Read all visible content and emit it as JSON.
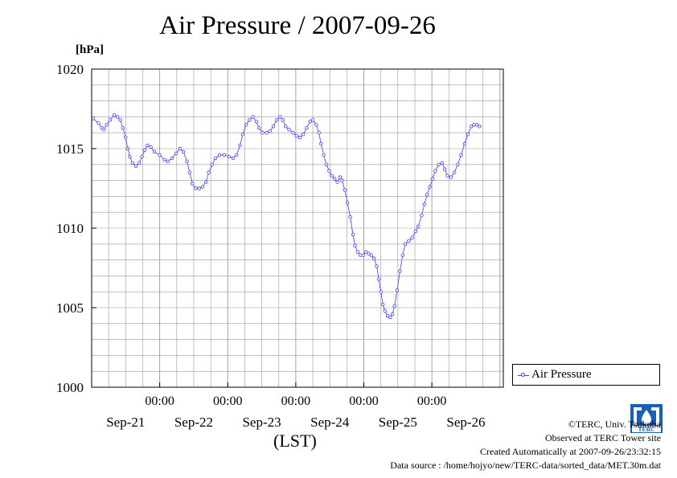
{
  "page": {
    "title": "Air Pressure / 2007-09-26",
    "unit_label": "[hPa]",
    "xlabel": "(LST)"
  },
  "legend": {
    "label": "Air Pressure"
  },
  "credits": {
    "copyright": "©TERC, Univ. Tsukuba",
    "observed": "Observed at TERC Tower site",
    "created": "Created Automatically at 2007-09-26/23:32:15",
    "source": "Data source : /home/hojyo/new/TERC-data/sorted_data/MET.30m.dat"
  },
  "logo": {
    "text": "TERC"
  },
  "colors": {
    "series": "#3b3bff",
    "grid": "#999999",
    "axis": "#000000"
  },
  "chart_data": {
    "type": "line",
    "title": "Air Pressure / 2007-09-26",
    "ylabel": "[hPa]",
    "xlabel": "(LST)",
    "ylim": [
      1000,
      1020
    ],
    "yticks": [
      1000,
      1005,
      1010,
      1015,
      1020
    ],
    "x_unit": "days since 2007-09-20 00:00 LST",
    "xlim": [
      0.0,
      6.0
    ],
    "time_tick_labels": [
      "00:00",
      "00:00",
      "00:00",
      "00:00",
      "00:00"
    ],
    "date_labels": [
      "Sep-21",
      "Sep-22",
      "Sep-23",
      "Sep-24",
      "Sep-25",
      "Sep-26"
    ],
    "grid": true,
    "legend_position": "right",
    "series": [
      {
        "name": "Air Pressure",
        "marker": "open-circle",
        "points": [
          [
            0.02,
            1016.9
          ],
          [
            0.1,
            1016.6
          ],
          [
            0.15,
            1016.3
          ],
          [
            0.18,
            1016.2
          ],
          [
            0.22,
            1016.5
          ],
          [
            0.27,
            1016.8
          ],
          [
            0.33,
            1017.1
          ],
          [
            0.38,
            1017.0
          ],
          [
            0.42,
            1016.8
          ],
          [
            0.46,
            1016.3
          ],
          [
            0.5,
            1015.7
          ],
          [
            0.53,
            1015.0
          ],
          [
            0.56,
            1014.5
          ],
          [
            0.6,
            1014.1
          ],
          [
            0.65,
            1013.9
          ],
          [
            0.7,
            1014.1
          ],
          [
            0.74,
            1014.5
          ],
          [
            0.78,
            1014.9
          ],
          [
            0.82,
            1015.2
          ],
          [
            0.87,
            1015.1
          ],
          [
            0.92,
            1014.8
          ],
          [
            1.0,
            1014.6
          ],
          [
            1.07,
            1014.3
          ],
          [
            1.12,
            1014.2
          ],
          [
            1.18,
            1014.4
          ],
          [
            1.24,
            1014.7
          ],
          [
            1.3,
            1015.0
          ],
          [
            1.35,
            1014.8
          ],
          [
            1.4,
            1014.2
          ],
          [
            1.44,
            1013.5
          ],
          [
            1.48,
            1012.8
          ],
          [
            1.53,
            1012.5
          ],
          [
            1.58,
            1012.5
          ],
          [
            1.63,
            1012.6
          ],
          [
            1.68,
            1012.9
          ],
          [
            1.72,
            1013.5
          ],
          [
            1.77,
            1014.0
          ],
          [
            1.82,
            1014.4
          ],
          [
            1.88,
            1014.6
          ],
          [
            1.95,
            1014.6
          ],
          [
            2.02,
            1014.5
          ],
          [
            2.08,
            1014.4
          ],
          [
            2.13,
            1014.6
          ],
          [
            2.18,
            1015.2
          ],
          [
            2.22,
            1015.9
          ],
          [
            2.27,
            1016.5
          ],
          [
            2.32,
            1016.8
          ],
          [
            2.37,
            1017.0
          ],
          [
            2.42,
            1016.7
          ],
          [
            2.46,
            1016.3
          ],
          [
            2.51,
            1016.0
          ],
          [
            2.57,
            1016.0
          ],
          [
            2.62,
            1016.1
          ],
          [
            2.67,
            1016.4
          ],
          [
            2.72,
            1016.8
          ],
          [
            2.77,
            1017.0
          ],
          [
            2.81,
            1016.8
          ],
          [
            2.85,
            1016.4
          ],
          [
            2.9,
            1016.2
          ],
          [
            2.96,
            1016.0
          ],
          [
            3.01,
            1015.8
          ],
          [
            3.06,
            1015.7
          ],
          [
            3.11,
            1015.9
          ],
          [
            3.16,
            1016.3
          ],
          [
            3.21,
            1016.7
          ],
          [
            3.25,
            1016.8
          ],
          [
            3.3,
            1016.5
          ],
          [
            3.34,
            1016.0
          ],
          [
            3.37,
            1015.3
          ],
          [
            3.41,
            1014.6
          ],
          [
            3.45,
            1014.0
          ],
          [
            3.49,
            1013.6
          ],
          [
            3.53,
            1013.3
          ],
          [
            3.57,
            1013.1
          ],
          [
            3.61,
            1012.9
          ],
          [
            3.65,
            1013.2
          ],
          [
            3.68,
            1013.0
          ],
          [
            3.72,
            1012.4
          ],
          [
            3.76,
            1011.6
          ],
          [
            3.8,
            1010.7
          ],
          [
            3.84,
            1009.6
          ],
          [
            3.87,
            1008.9
          ],
          [
            3.91,
            1008.5
          ],
          [
            3.95,
            1008.3
          ],
          [
            3.99,
            1008.3
          ],
          [
            4.03,
            1008.5
          ],
          [
            4.07,
            1008.4
          ],
          [
            4.11,
            1008.3
          ],
          [
            4.15,
            1008.1
          ],
          [
            4.19,
            1007.6
          ],
          [
            4.22,
            1006.8
          ],
          [
            4.25,
            1006.0
          ],
          [
            4.28,
            1005.2
          ],
          [
            4.31,
            1004.8
          ],
          [
            4.35,
            1004.5
          ],
          [
            4.39,
            1004.4
          ],
          [
            4.42,
            1004.6
          ],
          [
            4.45,
            1005.1
          ],
          [
            4.49,
            1006.1
          ],
          [
            4.53,
            1007.3
          ],
          [
            4.57,
            1008.3
          ],
          [
            4.61,
            1009.0
          ],
          [
            4.66,
            1009.2
          ],
          [
            4.71,
            1009.4
          ],
          [
            4.76,
            1009.8
          ],
          [
            4.8,
            1010.1
          ],
          [
            4.85,
            1010.8
          ],
          [
            4.89,
            1011.5
          ],
          [
            4.93,
            1012.1
          ],
          [
            4.97,
            1012.6
          ],
          [
            5.01,
            1013.1
          ],
          [
            5.05,
            1013.6
          ],
          [
            5.1,
            1014.0
          ],
          [
            5.15,
            1014.1
          ],
          [
            5.19,
            1013.7
          ],
          [
            5.23,
            1013.3
          ],
          [
            5.28,
            1013.2
          ],
          [
            5.33,
            1013.5
          ],
          [
            5.38,
            1014.0
          ],
          [
            5.43,
            1014.6
          ],
          [
            5.48,
            1015.3
          ],
          [
            5.53,
            1015.9
          ],
          [
            5.58,
            1016.4
          ],
          [
            5.62,
            1016.5
          ],
          [
            5.66,
            1016.5
          ],
          [
            5.7,
            1016.4
          ]
        ]
      }
    ]
  }
}
